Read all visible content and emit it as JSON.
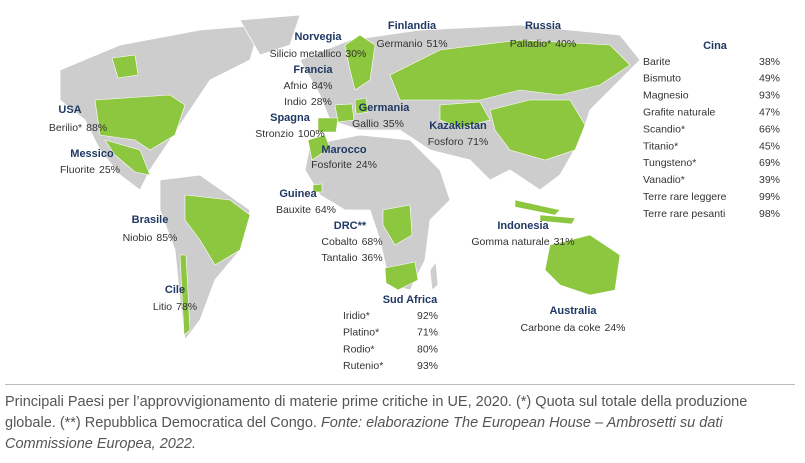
{
  "countries": [
    {
      "name": "USA",
      "items": [
        {
          "material": "Berilio*",
          "share": "88%"
        }
      ]
    },
    {
      "name": "Messico",
      "items": [
        {
          "material": "Fluorite",
          "share": "25%"
        }
      ]
    },
    {
      "name": "Brasile",
      "items": [
        {
          "material": "Niobio",
          "share": "85%"
        }
      ]
    },
    {
      "name": "Cile",
      "items": [
        {
          "material": "Litio",
          "share": "78%"
        }
      ]
    },
    {
      "name": "Norvegia",
      "items": [
        {
          "material": "Silicio metallico",
          "share": "30%"
        }
      ]
    },
    {
      "name": "Francia",
      "items": [
        {
          "material": "Afnio",
          "share": "84%"
        },
        {
          "material": "Indio",
          "share": "28%"
        }
      ]
    },
    {
      "name": "Spagna",
      "items": [
        {
          "material": "Stronzio",
          "share": "100%"
        }
      ]
    },
    {
      "name": "Finlandia",
      "items": [
        {
          "material": "Germanio",
          "share": "51%"
        }
      ]
    },
    {
      "name": "Russia",
      "items": [
        {
          "material": "Palladio*",
          "share": "40%"
        }
      ]
    },
    {
      "name": "Germania",
      "items": [
        {
          "material": "Gallio",
          "share": "35%"
        }
      ]
    },
    {
      "name": "Kazakistan",
      "items": [
        {
          "material": "Fosforo",
          "share": "71%"
        }
      ]
    },
    {
      "name": "Marocco",
      "items": [
        {
          "material": "Fosforite",
          "share": "24%"
        }
      ]
    },
    {
      "name": "Guinea",
      "items": [
        {
          "material": "Bauxite",
          "share": "64%"
        }
      ]
    },
    {
      "name": "DRC**",
      "items": [
        {
          "material": "Cobalto",
          "share": "68%"
        },
        {
          "material": "Tantalio",
          "share": "36%"
        }
      ]
    },
    {
      "name": "Indonesia",
      "items": [
        {
          "material": "Gomma naturale",
          "share": "31%"
        }
      ]
    },
    {
      "name": "Australia",
      "items": [
        {
          "material": "Carbone da coke",
          "share": "24%"
        }
      ]
    },
    {
      "name": "Sud Africa",
      "items": [
        {
          "material": "Iridio*",
          "share": "92%"
        },
        {
          "material": "Platino*",
          "share": "71%"
        },
        {
          "material": "Rodio*",
          "share": "80%"
        },
        {
          "material": "Rutenio*",
          "share": "93%"
        }
      ]
    },
    {
      "name": "Cina",
      "items": [
        {
          "material": "Barite",
          "share": "38%"
        },
        {
          "material": "Bismuto",
          "share": "49%"
        },
        {
          "material": "Magnesio",
          "share": "93%"
        },
        {
          "material": "Grafite naturale",
          "share": "47%"
        },
        {
          "material": "Scandio*",
          "share": "66%"
        },
        {
          "material": "Titanio*",
          "share": "45%"
        },
        {
          "material": "Tungsteno*",
          "share": "69%"
        },
        {
          "material": "Vanadio*",
          "share": "39%"
        },
        {
          "material": "Terre rare leggere",
          "share": "99%"
        },
        {
          "material": "Terre rare pesanti",
          "share": "98%"
        }
      ]
    }
  ],
  "caption": {
    "text": "Principali Paesi per l’approvvigionamento di materie prime critiche in UE, 2020. (*) Quota sul totale della produzione globale. (**) Repubblica Democratica del Congo. ",
    "source": "Fonte: elaborazione The European House – Ambrosetti su dati Commissione Europea, 2022."
  }
}
